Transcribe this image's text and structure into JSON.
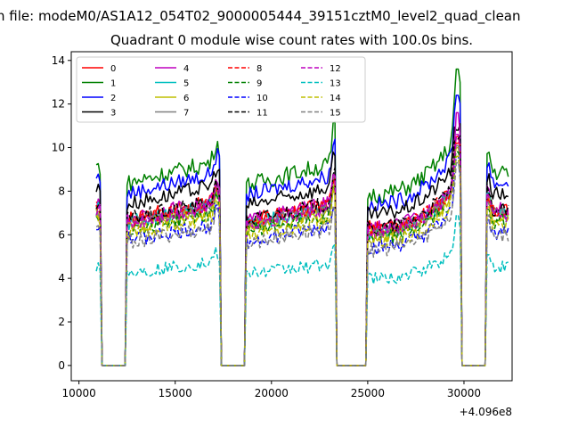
{
  "header": {
    "suptitle": "n file: modeM0/AS1A12_054T02_9000005444_39151cztM0_level2_quad_clean"
  },
  "chart_data": {
    "type": "line",
    "title": "Quadrant 0 module wise count rates with 100.0s bins.",
    "xlabel": "",
    "ylabel": "",
    "x_offset_label": "+4.096e8",
    "xlim": [
      9600,
      32500
    ],
    "ylim": [
      -0.7,
      14.4
    ],
    "xticks": [
      10000,
      15000,
      20000,
      25000,
      30000
    ],
    "yticks": [
      0,
      2,
      4,
      6,
      8,
      10,
      12,
      14
    ],
    "grid": false,
    "legend": {
      "placement": "top-left",
      "ncol": 4
    },
    "segments": [
      [
        10900,
        11100
      ],
      [
        12450,
        17300
      ],
      [
        18650,
        23350
      ],
      [
        24950,
        29850
      ],
      [
        31150,
        32300
      ]
    ],
    "gaps": [
      [
        11100,
        12450
      ],
      [
        17300,
        18650
      ],
      [
        23350,
        24950
      ],
      [
        29850,
        31150
      ]
    ],
    "bin_seconds": 100,
    "series": [
      {
        "name": "0",
        "color": "#ff0000",
        "dash": "solid",
        "level": 7.0,
        "peak": 10.5,
        "jitter": 0.35
      },
      {
        "name": "1",
        "color": "#008000",
        "dash": "solid",
        "level": 8.7,
        "peak": 13.6,
        "jitter": 0.4
      },
      {
        "name": "2",
        "color": "#0000ff",
        "dash": "solid",
        "level": 8.2,
        "peak": 12.4,
        "jitter": 0.35
      },
      {
        "name": "3",
        "color": "#000000",
        "dash": "solid",
        "level": 7.7,
        "peak": 10.8,
        "jitter": 0.35
      },
      {
        "name": "4",
        "color": "#bf00bf",
        "dash": "solid",
        "level": 7.0,
        "peak": 11.6,
        "jitter": 0.35
      },
      {
        "name": "5",
        "color": "#00bfbf",
        "dash": "solid",
        "level": 6.8,
        "peak": 10.0,
        "jitter": 0.35
      },
      {
        "name": "6",
        "color": "#bfbf00",
        "dash": "solid",
        "level": 6.6,
        "peak": 10.0,
        "jitter": 0.35
      },
      {
        "name": "7",
        "color": "#808080",
        "dash": "solid",
        "level": 6.8,
        "peak": 10.1,
        "jitter": 0.35
      },
      {
        "name": "8",
        "color": "#ff0000",
        "dash": "dashed",
        "level": 6.9,
        "peak": 10.2,
        "jitter": 0.35
      },
      {
        "name": "9",
        "color": "#008000",
        "dash": "dashed",
        "level": 6.5,
        "peak": 9.8,
        "jitter": 0.35
      },
      {
        "name": "10",
        "color": "#0000ff",
        "dash": "dashed",
        "level": 6.0,
        "peak": 9.6,
        "jitter": 0.35
      },
      {
        "name": "11",
        "color": "#000000",
        "dash": "dashed",
        "level": 7.0,
        "peak": 10.4,
        "jitter": 0.35
      },
      {
        "name": "12",
        "color": "#bf00bf",
        "dash": "dashed",
        "level": 6.8,
        "peak": 10.6,
        "jitter": 0.35
      },
      {
        "name": "13",
        "color": "#00bfbf",
        "dash": "dashed",
        "level": 4.4,
        "peak": 6.9,
        "jitter": 0.3
      },
      {
        "name": "14",
        "color": "#bfbf00",
        "dash": "dashed",
        "level": 6.3,
        "peak": 9.6,
        "jitter": 0.35
      },
      {
        "name": "15",
        "color": "#808080",
        "dash": "dashed",
        "level": 5.9,
        "peak": 9.3,
        "jitter": 0.35
      }
    ]
  }
}
